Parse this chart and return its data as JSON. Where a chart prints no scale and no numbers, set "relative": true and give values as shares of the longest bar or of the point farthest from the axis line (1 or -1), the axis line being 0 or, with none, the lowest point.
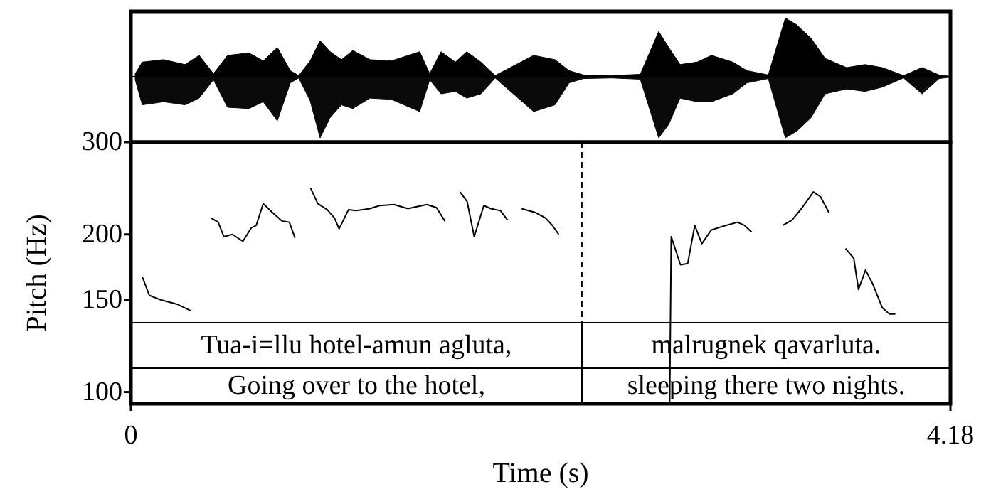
{
  "chart_data": [
    {
      "type": "area",
      "relative": true,
      "xlim": [
        0,
        4.18
      ],
      "x": [
        0.022,
        0.058,
        0.167,
        0.276,
        0.348,
        0.421,
        0.493,
        0.602,
        0.675,
        0.747,
        0.813,
        0.856,
        0.914,
        0.965,
        1.016,
        1.074,
        1.132,
        1.219,
        1.328,
        1.473,
        1.524,
        1.582,
        1.655,
        1.713,
        1.785,
        1.858,
        2.054,
        2.163,
        2.235,
        2.308,
        2.453,
        2.598,
        2.692,
        2.743,
        2.801,
        2.888,
        2.961,
        3.07,
        3.142,
        3.251,
        3.338,
        3.396,
        3.469,
        3.541,
        3.65,
        3.745,
        3.832,
        3.941,
        4.035,
        4.122,
        4.173
      ],
      "series": [
        {
          "color": "#000000",
          "values": [
            0.05,
            0.24,
            0.28,
            0.2,
            0.35,
            0.05,
            0.35,
            0.39,
            0.26,
            0.48,
            0.1,
            0.02,
            0.26,
            0.59,
            0.41,
            0.28,
            0.43,
            0.28,
            0.26,
            0.41,
            0.05,
            0.41,
            0.24,
            0.41,
            0.24,
            0.02,
            0.35,
            0.28,
            0.1,
            0.03,
            0.02,
            0.04,
            0.74,
            0.48,
            0.2,
            0.24,
            0.35,
            0.24,
            0.1,
            0.03,
            0.96,
            0.85,
            0.63,
            0.3,
            0.15,
            0.2,
            0.15,
            0.02,
            0.15,
            0.03,
            0.01
          ]
        },
        {
          "color": "#0a0a0a",
          "values": [
            -0.05,
            -0.46,
            -0.41,
            -0.46,
            -0.35,
            -0.05,
            -0.5,
            -0.52,
            -0.41,
            -0.72,
            -0.1,
            -0.02,
            -0.39,
            -1,
            -0.67,
            -0.46,
            -0.52,
            -0.35,
            -0.37,
            -0.57,
            -0.05,
            -0.28,
            -0.24,
            -0.35,
            -0.28,
            -0.02,
            -0.57,
            -0.46,
            -0.1,
            -0.03,
            -0.02,
            -0.04,
            -1,
            -0.78,
            -0.35,
            -0.41,
            -0.41,
            -0.28,
            -0.1,
            -0.03,
            -1,
            -0.89,
            -0.67,
            -0.28,
            -0.2,
            -0.24,
            -0.17,
            -0.02,
            -0.28,
            -0.03,
            -0.01
          ]
        }
      ]
    },
    {
      "type": "line",
      "log": "y",
      "xlim": [
        0,
        4.18
      ],
      "xticks": [
        0,
        4.18
      ],
      "ylim": [
        95,
        300
      ],
      "yticks": [
        100,
        150,
        200,
        300
      ],
      "xlabel": "Time (s)",
      "ylabel": "Pitch (Hz)",
      "grid": false,
      "marker": "none",
      "line_style": "solid",
      "series": [
        {
          "color": "#000000",
          "x": [
            0.058,
            0.094,
            0.152,
            0.239,
            0.305
          ],
          "values": [
            166,
            153,
            150,
            147,
            143
          ]
        },
        {
          "color": "#000000",
          "x": [
            0.409,
            0.445,
            0.474,
            0.518,
            0.571,
            0.615,
            0.639,
            0.675,
            0.723,
            0.771,
            0.808,
            0.837
          ],
          "values": [
            215,
            211,
            198,
            200,
            194,
            206,
            208,
            229,
            220,
            212,
            211,
            197
          ]
        },
        {
          "color": "#000000",
          "x": [
            0.917,
            0.953,
            1.001,
            1.038,
            1.062,
            1.11,
            1.147,
            1.219,
            1.268,
            1.341,
            1.413,
            1.509,
            1.558,
            1.602
          ],
          "values": [
            245,
            229,
            223,
            215,
            205,
            223,
            222,
            224,
            227,
            228,
            224,
            228,
            225,
            212
          ]
        },
        {
          "color": "#000000",
          "x": [
            1.679,
            1.715,
            1.751,
            1.8,
            1.836,
            1.885,
            1.921
          ],
          "values": [
            241,
            231,
            198,
            227,
            224,
            222,
            213
          ]
        },
        {
          "color": "#000000",
          "x": [
            1.993,
            2.066,
            2.114,
            2.15,
            2.182
          ],
          "values": [
            224,
            220,
            215,
            208,
            200
          ]
        },
        {
          "color": "#000000",
          "x": [
            2.748,
            2.756,
            2.803,
            2.84,
            2.876,
            2.912,
            2.961,
            3.033,
            3.094,
            3.13,
            3.166
          ],
          "values": [
            95,
            198,
            175,
            176,
            208,
            192,
            204,
            208,
            211,
            208,
            202
          ]
        },
        {
          "color": "#000000",
          "x": [
            3.324,
            3.372,
            3.42,
            3.481,
            3.517,
            3.561
          ],
          "values": [
            208,
            213,
            224,
            241,
            236,
            220
          ]
        },
        {
          "color": "#000000",
          "x": [
            3.645,
            3.687,
            3.711,
            3.747,
            3.783,
            3.832,
            3.868,
            3.899
          ],
          "values": [
            188,
            180,
            157,
            171,
            161,
            145,
            141,
            141
          ]
        }
      ],
      "ref_lines": [
        {
          "axis": "x",
          "value": 2.3,
          "line_style": "dashed"
        }
      ],
      "annotations": [
        "Tua-i=llu hotel-amun agluta,",
        "malrugnek qavarluta.",
        "Going over to the hotel,",
        "sleeping there two nights."
      ]
    }
  ]
}
